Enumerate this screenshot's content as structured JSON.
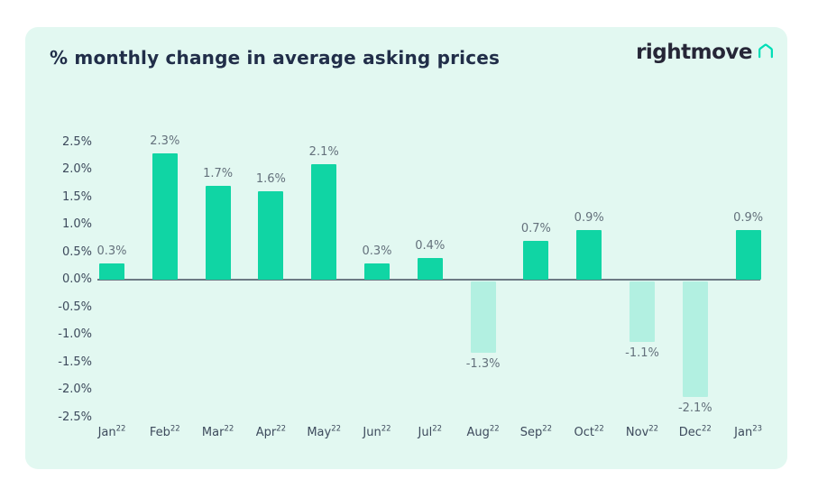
{
  "header": {
    "title": "% monthly change in average asking prices",
    "logo_text": "rightmove"
  },
  "colors": {
    "card_background": "#e2f8f1",
    "positive_bar": "#10d5a4",
    "negative_bar": "#b2f0e1",
    "title_text": "#212e49",
    "tick_text": "#3d4a5c",
    "data_label_text": "#64717c",
    "zero_line": "#6d7a84",
    "logo_navy": "#262637",
    "logo_teal": "#00deb6"
  },
  "chart_data": {
    "type": "bar",
    "title": "% monthly change in average asking prices",
    "categories": [
      "Jan",
      "Feb",
      "Mar",
      "Apr",
      "May",
      "Jun",
      "Jul",
      "Aug",
      "Sep",
      "Oct",
      "Nov",
      "Dec",
      "Jan"
    ],
    "category_year_superscripts": [
      "22",
      "22",
      "22",
      "22",
      "22",
      "22",
      "22",
      "22",
      "22",
      "22",
      "22",
      "22",
      "23"
    ],
    "values": [
      0.3,
      2.3,
      1.7,
      1.6,
      2.1,
      0.3,
      0.4,
      -1.3,
      0.7,
      0.9,
      -1.1,
      -2.1,
      0.9
    ],
    "data_labels": [
      "0.3%",
      "2.3%",
      "1.7%",
      "1.6%",
      "2.1%",
      "0.3%",
      "0.4%",
      "-1.3%",
      "0.7%",
      "0.9%",
      "-1.1%",
      "-2.1%",
      "0.9%"
    ],
    "y_tick_values": [
      2.5,
      2.0,
      1.5,
      1.0,
      0.5,
      0.0,
      -0.5,
      -1.0,
      -1.5,
      -2.0,
      -2.5
    ],
    "y_tick_labels": [
      "2.5%",
      "2.0%",
      "1.5%",
      "1.0%",
      "0.5%",
      "0.0%",
      "-0.5%",
      "-1.0%",
      "-1.5%",
      "-2.0%",
      "-2.5%"
    ],
    "ylim": [
      -2.5,
      2.5
    ],
    "xlabel": "",
    "ylabel": "",
    "grid": false,
    "legend": false
  }
}
